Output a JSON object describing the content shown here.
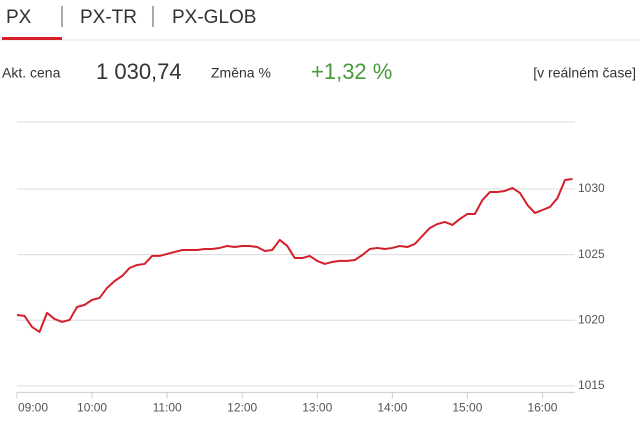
{
  "tabs": [
    "PX",
    "PX-TR",
    "PX-GLOB"
  ],
  "quote": {
    "price_label": "Akt. cena",
    "price": "1 030,74",
    "change_label": "Změna %",
    "change": "+1,32 %",
    "realtime": "[v reálném čase]"
  },
  "chart_data": {
    "type": "line",
    "x": [
      "09:00",
      "09:06",
      "09:12",
      "09:18",
      "09:24",
      "09:30",
      "09:36",
      "09:42",
      "09:48",
      "09:54",
      "10:00",
      "10:06",
      "10:12",
      "10:18",
      "10:24",
      "10:30",
      "10:36",
      "10:42",
      "10:48",
      "10:54",
      "11:00",
      "11:06",
      "11:12",
      "11:18",
      "11:24",
      "11:30",
      "11:36",
      "11:42",
      "11:48",
      "11:54",
      "12:00",
      "12:06",
      "12:12",
      "12:18",
      "12:24",
      "12:30",
      "12:36",
      "12:42",
      "12:48",
      "12:54",
      "13:00",
      "13:06",
      "13:12",
      "13:18",
      "13:24",
      "13:30",
      "13:36",
      "13:42",
      "13:48",
      "13:54",
      "14:00",
      "14:06",
      "14:12",
      "14:18",
      "14:24",
      "14:30",
      "14:36",
      "14:42",
      "14:48",
      "14:54",
      "15:00",
      "15:06",
      "15:12",
      "15:18",
      "15:24",
      "15:30",
      "15:36",
      "15:42",
      "15:48",
      "15:54",
      "16:00",
      "16:06",
      "16:12",
      "16:18",
      "16:24"
    ],
    "series": [
      {
        "name": "PX",
        "color": "#d3202b",
        "values": [
          1020.4,
          1020.33,
          1019.49,
          1019.11,
          1020.56,
          1020.1,
          1019.87,
          1020.02,
          1021.01,
          1021.17,
          1021.55,
          1021.7,
          1022.46,
          1022.99,
          1023.37,
          1023.98,
          1024.21,
          1024.29,
          1024.9,
          1024.9,
          1025.05,
          1025.2,
          1025.35,
          1025.35,
          1025.35,
          1025.43,
          1025.43,
          1025.51,
          1025.66,
          1025.58,
          1025.66,
          1025.66,
          1025.58,
          1025.28,
          1025.35,
          1026.12,
          1025.66,
          1024.74,
          1024.74,
          1024.9,
          1024.52,
          1024.29,
          1024.44,
          1024.52,
          1024.52,
          1024.59,
          1024.97,
          1025.43,
          1025.51,
          1025.43,
          1025.51,
          1025.66,
          1025.58,
          1025.81,
          1026.42,
          1027.03,
          1027.33,
          1027.49,
          1027.26,
          1027.72,
          1028.1,
          1028.1,
          1029.16,
          1029.77,
          1029.77,
          1029.85,
          1030.08,
          1029.7,
          1028.78,
          1028.17,
          1028.4,
          1028.63,
          1029.31,
          1030.69,
          1030.76
        ]
      }
    ],
    "xlim": [
      "09:00",
      "16:26"
    ],
    "xticks": [
      "09:00",
      "10:00",
      "11:00",
      "12:00",
      "13:00",
      "14:00",
      "15:00",
      "16:00"
    ],
    "ylim": [
      1014.5,
      1035
    ],
    "yticks": [
      1015,
      1020,
      1025,
      1030
    ],
    "grid": true
  }
}
